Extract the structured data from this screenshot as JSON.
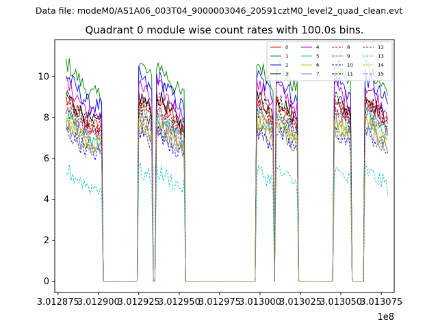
{
  "header": {
    "data_file": "Data file: modeM0/AS1A06_003T04_9000003046_20591cztM0_level2_quad_clean.evt"
  },
  "chart_data": {
    "type": "line",
    "title": "Quadrant 0 module wise count rates with 100.0s bins.",
    "xlabel": "",
    "ylabel": "",
    "x_offset_label": "1e8",
    "xlim": [
      301287300,
      301308300
    ],
    "ylim": [
      -0.55,
      11.8
    ],
    "x_ticks": [
      {
        "value": 301287500,
        "label": "3.012875"
      },
      {
        "value": 301290000,
        "label": "3.012900"
      },
      {
        "value": 301292500,
        "label": "3.012925"
      },
      {
        "value": 301295000,
        "label": "3.012950"
      },
      {
        "value": 301297500,
        "label": "3.012975"
      },
      {
        "value": 301300000,
        "label": "3.013000"
      },
      {
        "value": 301302500,
        "label": "3.013025"
      },
      {
        "value": 301305000,
        "label": "3.013050"
      },
      {
        "value": 301307500,
        "label": "3.013075"
      }
    ],
    "y_ticks": [
      {
        "value": 0,
        "label": "0"
      },
      {
        "value": 2,
        "label": "2"
      },
      {
        "value": 4,
        "label": "4"
      },
      {
        "value": 6,
        "label": "6"
      },
      {
        "value": 8,
        "label": "8"
      },
      {
        "value": 10,
        "label": "10"
      }
    ],
    "segments": [
      [
        301288000,
        301290250
      ],
      [
        301292500,
        301293300
      ],
      [
        301293600,
        301295300
      ],
      [
        301299800,
        301300800
      ],
      [
        301301000,
        301302300
      ],
      [
        301304600,
        301305600
      ],
      [
        301306500,
        301307900
      ]
    ],
    "series": [
      {
        "name": "0",
        "color": "#ff0000",
        "style": "solid",
        "level": 8.2
      },
      {
        "name": "1",
        "color": "#008000",
        "style": "solid",
        "level": 9.9
      },
      {
        "name": "2",
        "color": "#0000ff",
        "style": "solid",
        "level": 9.3
      },
      {
        "name": "3",
        "color": "#000000",
        "style": "solid",
        "level": 8.4
      },
      {
        "name": "4",
        "color": "#bf00bf",
        "style": "solid",
        "level": 8.9
      },
      {
        "name": "5",
        "color": "#00bfbf",
        "style": "solid",
        "level": 7.5
      },
      {
        "name": "6",
        "color": "#bfbf00",
        "style": "solid",
        "level": 7.2
      },
      {
        "name": "7",
        "color": "#808080",
        "style": "solid",
        "level": 7.0
      },
      {
        "name": "8",
        "color": "#ff0000",
        "style": "dashed",
        "level": 8.0
      },
      {
        "name": "9",
        "color": "#008000",
        "style": "dashed",
        "level": 7.8
      },
      {
        "name": "10",
        "color": "#0000ff",
        "style": "dashed",
        "level": 6.8
      },
      {
        "name": "11",
        "color": "#000000",
        "style": "dashed",
        "level": 8.3
      },
      {
        "name": "12",
        "color": "#bf00bf",
        "style": "dashed",
        "level": 7.7
      },
      {
        "name": "13",
        "color": "#00bfbf",
        "style": "dashed",
        "level": 5.0
      },
      {
        "name": "14",
        "color": "#bfbf00",
        "style": "dashed",
        "level": 7.3
      },
      {
        "name": "15",
        "color": "#808080",
        "style": "dashed",
        "level": 7.1
      }
    ]
  }
}
